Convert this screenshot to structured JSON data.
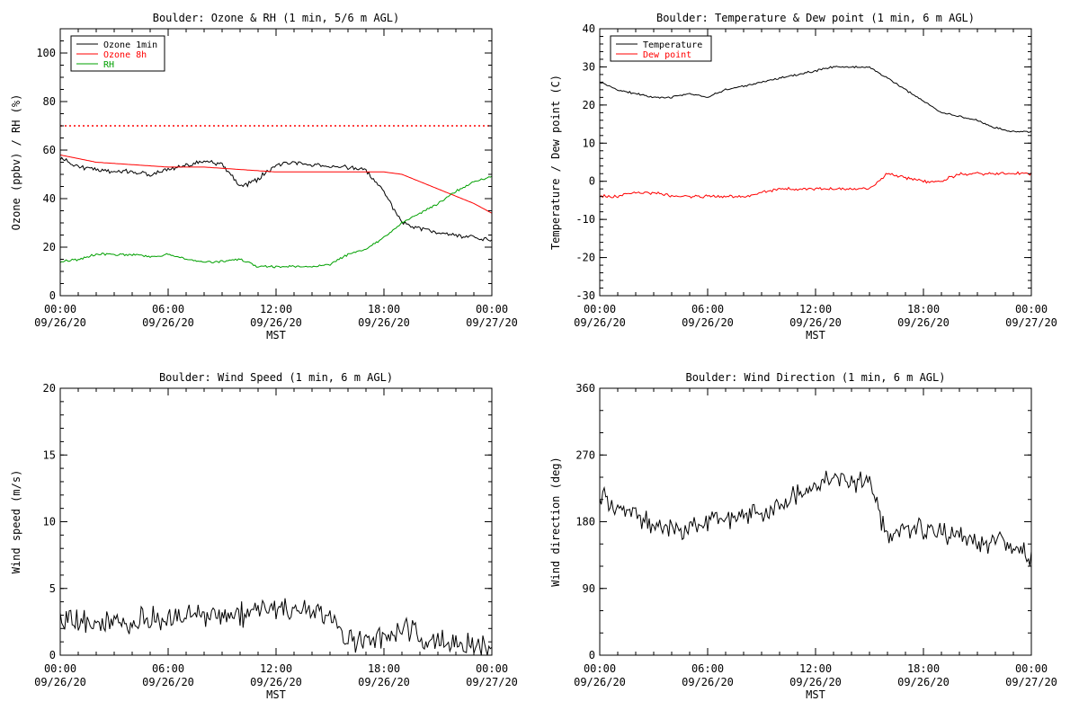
{
  "chart_data": [
    {
      "type": "line",
      "title": "Boulder: Ozone & RH (1 min, 5/6 m AGL)",
      "xlabel": "MST",
      "ylabel": "Ozone (ppbv) / RH (%)",
      "xlim": [
        "09/26/20 00:00",
        "09/27/20 00:00"
      ],
      "ylim": [
        0,
        110
      ],
      "x_ticks": [
        {
          "time": "00:00",
          "date": "09/26/20"
        },
        {
          "time": "06:00",
          "date": "09/26/20"
        },
        {
          "time": "12:00",
          "date": "09/26/20"
        },
        {
          "time": "18:00",
          "date": "09/26/20"
        },
        {
          "time": "00:00",
          "date": "09/27/20"
        }
      ],
      "y_ticks": [
        "0",
        "20",
        "40",
        "60",
        "80",
        "100"
      ],
      "grid": false,
      "legend_position": "top-left",
      "reference_line": {
        "y": 70,
        "color": "#ff0000",
        "style": "dotted"
      },
      "series": [
        {
          "name": "Ozone 1min",
          "color": "#000000",
          "noise": 1.2,
          "x": [
            "09/26/20 00:00",
            "09/26/20 01:00",
            "09/26/20 02:00",
            "09/26/20 03:00",
            "09/26/20 04:00",
            "09/26/20 05:00",
            "09/26/20 06:00",
            "09/26/20 07:00",
            "09/26/20 08:00",
            "09/26/20 09:00",
            "09/26/20 10:00",
            "09/26/20 11:00",
            "09/26/20 12:00",
            "09/26/20 13:00",
            "09/26/20 14:00",
            "09/26/20 15:00",
            "09/26/20 16:00",
            "09/26/20 17:00",
            "09/26/20 18:00",
            "09/26/20 19:00",
            "09/26/20 20:00",
            "09/26/20 21:00",
            "09/26/20 22:00",
            "09/26/20 23:00",
            "09/27/20 00:00"
          ],
          "y": [
            57,
            53,
            52,
            51,
            51,
            50,
            52,
            54,
            55,
            54,
            45,
            48,
            54,
            55,
            54,
            53,
            53,
            52,
            43,
            30,
            28,
            26,
            25,
            24,
            23
          ]
        },
        {
          "name": "Ozone 8h",
          "color": "#ff0000",
          "noise": 0,
          "x": [
            "09/26/20 00:00",
            "09/26/20 02:00",
            "09/26/20 04:00",
            "09/26/20 06:00",
            "09/26/20 08:00",
            "09/26/20 10:00",
            "09/26/20 12:00",
            "09/26/20 14:00",
            "09/26/20 16:00",
            "09/26/20 18:00",
            "09/26/20 19:00",
            "09/26/20 20:00",
            "09/26/20 21:00",
            "09/26/20 22:00",
            "09/26/20 23:00",
            "09/27/20 00:00"
          ],
          "y": [
            58,
            55,
            54,
            53,
            53,
            52,
            51,
            51,
            51,
            51,
            50,
            47,
            44,
            41,
            38,
            34
          ]
        },
        {
          "name": "RH",
          "color": "#00a000",
          "noise": 0.6,
          "x": [
            "09/26/20 00:00",
            "09/26/20 01:00",
            "09/26/20 02:00",
            "09/26/20 03:00",
            "09/26/20 04:00",
            "09/26/20 05:00",
            "09/26/20 06:00",
            "09/26/20 07:00",
            "09/26/20 08:00",
            "09/26/20 09:00",
            "09/26/20 10:00",
            "09/26/20 11:00",
            "09/26/20 12:00",
            "09/26/20 13:00",
            "09/26/20 14:00",
            "09/26/20 15:00",
            "09/26/20 16:00",
            "09/26/20 17:00",
            "09/26/20 18:00",
            "09/26/20 19:00",
            "09/26/20 20:00",
            "09/26/20 21:00",
            "09/26/20 22:00",
            "09/26/20 23:00",
            "09/27/20 00:00"
          ],
          "y": [
            14,
            15,
            17,
            17,
            17,
            16,
            17,
            15,
            14,
            14,
            15,
            12,
            12,
            12,
            12,
            13,
            17,
            19,
            24,
            30,
            34,
            38,
            43,
            47,
            49
          ]
        }
      ]
    },
    {
      "type": "line",
      "title": "Boulder: Temperature & Dew point (1 min, 6 m AGL)",
      "xlabel": "MST",
      "ylabel": "Temperature / Dew point (C)",
      "xlim": [
        "09/26/20 00:00",
        "09/27/20 00:00"
      ],
      "ylim": [
        -30,
        40
      ],
      "x_ticks": [
        {
          "time": "00:00",
          "date": "09/26/20"
        },
        {
          "time": "06:00",
          "date": "09/26/20"
        },
        {
          "time": "12:00",
          "date": "09/26/20"
        },
        {
          "time": "18:00",
          "date": "09/26/20"
        },
        {
          "time": "00:00",
          "date": "09/27/20"
        }
      ],
      "y_ticks": [
        "-30",
        "-20",
        "-10",
        "0",
        "10",
        "20",
        "30",
        "40"
      ],
      "grid": false,
      "legend_position": "top-left",
      "series": [
        {
          "name": "Temperature",
          "color": "#000000",
          "noise": 0.3,
          "x": [
            "09/26/20 00:00",
            "09/26/20 01:00",
            "09/26/20 02:00",
            "09/26/20 03:00",
            "09/26/20 04:00",
            "09/26/20 05:00",
            "09/26/20 06:00",
            "09/26/20 07:00",
            "09/26/20 08:00",
            "09/26/20 09:00",
            "09/26/20 10:00",
            "09/26/20 11:00",
            "09/26/20 12:00",
            "09/26/20 13:00",
            "09/26/20 14:00",
            "09/26/20 15:00",
            "09/26/20 16:00",
            "09/26/20 17:00",
            "09/26/20 18:00",
            "09/26/20 19:00",
            "09/26/20 20:00",
            "09/26/20 21:00",
            "09/26/20 22:00",
            "09/26/20 23:00",
            "09/27/20 00:00"
          ],
          "y": [
            26,
            24,
            23,
            22,
            22,
            23,
            22,
            24,
            25,
            26,
            27,
            28,
            29,
            30,
            30,
            30,
            27,
            24,
            21,
            18,
            17,
            16,
            14,
            13,
            13
          ]
        },
        {
          "name": "Dew point",
          "color": "#ff0000",
          "noise": 0.5,
          "x": [
            "09/26/20 00:00",
            "09/26/20 01:00",
            "09/26/20 02:00",
            "09/26/20 03:00",
            "09/26/20 04:00",
            "09/26/20 05:00",
            "09/26/20 06:00",
            "09/26/20 07:00",
            "09/26/20 08:00",
            "09/26/20 09:00",
            "09/26/20 10:00",
            "09/26/20 11:00",
            "09/26/20 12:00",
            "09/26/20 13:00",
            "09/26/20 14:00",
            "09/26/20 15:00",
            "09/26/20 16:00",
            "09/26/20 17:00",
            "09/26/20 18:00",
            "09/26/20 19:00",
            "09/26/20 20:00",
            "09/26/20 21:00",
            "09/26/20 22:00",
            "09/26/20 23:00",
            "09/27/20 00:00"
          ],
          "y": [
            -4,
            -4,
            -3,
            -3,
            -4,
            -4,
            -4,
            -4,
            -4,
            -3,
            -2,
            -2,
            -2,
            -2,
            -2,
            -2,
            2,
            1,
            0,
            0,
            2,
            2,
            2,
            2,
            2
          ]
        }
      ]
    },
    {
      "type": "line",
      "title": "Boulder: Wind Speed (1 min, 6 m AGL)",
      "xlabel": "MST",
      "ylabel": "Wind speed (m/s)",
      "xlim": [
        "09/26/20 00:00",
        "09/27/20 00:00"
      ],
      "ylim": [
        0,
        20
      ],
      "x_ticks": [
        {
          "time": "00:00",
          "date": "09/26/20"
        },
        {
          "time": "06:00",
          "date": "09/26/20"
        },
        {
          "time": "12:00",
          "date": "09/26/20"
        },
        {
          "time": "18:00",
          "date": "09/26/20"
        },
        {
          "time": "00:00",
          "date": "09/27/20"
        }
      ],
      "y_ticks": [
        "0",
        "5",
        "10",
        "15",
        "20"
      ],
      "grid": false,
      "series": [
        {
          "name": "",
          "color": "#000000",
          "noise": 1.1,
          "floor": 0,
          "x": [
            "09/26/20 00:00",
            "09/26/20 01:00",
            "09/26/20 02:00",
            "09/26/20 03:00",
            "09/26/20 04:00",
            "09/26/20 05:00",
            "09/26/20 06:00",
            "09/26/20 07:00",
            "09/26/20 08:00",
            "09/26/20 09:00",
            "09/26/20 10:00",
            "09/26/20 11:00",
            "09/26/20 12:00",
            "09/26/20 13:00",
            "09/26/20 14:00",
            "09/26/20 15:00",
            "09/26/20 16:00",
            "09/26/20 17:00",
            "09/26/20 18:00",
            "09/26/20 19:00",
            "09/26/20 20:00",
            "09/26/20 21:00",
            "09/26/20 22:00",
            "09/26/20 23:00",
            "09/27/20 00:00"
          ],
          "y": [
            3,
            2.5,
            2.5,
            2.5,
            2.5,
            3,
            2.5,
            3,
            3,
            3,
            3,
            3.5,
            3.5,
            3.5,
            3.5,
            3,
            1,
            1,
            1.5,
            2,
            1.5,
            1,
            1,
            0.8,
            0.5
          ]
        }
      ]
    },
    {
      "type": "line",
      "title": "Boulder: Wind Direction (1 min, 6 m AGL)",
      "xlabel": "MST",
      "ylabel": "Wind direction (deg)",
      "xlim": [
        "09/26/20 00:00",
        "09/27/20 00:00"
      ],
      "ylim": [
        0,
        360
      ],
      "x_ticks": [
        {
          "time": "00:00",
          "date": "09/26/20"
        },
        {
          "time": "06:00",
          "date": "09/26/20"
        },
        {
          "time": "12:00",
          "date": "09/26/20"
        },
        {
          "time": "18:00",
          "date": "09/26/20"
        },
        {
          "time": "00:00",
          "date": "09/27/20"
        }
      ],
      "y_ticks": [
        "0",
        "90",
        "180",
        "270",
        "360"
      ],
      "grid": false,
      "series": [
        {
          "name": "",
          "color": "#000000",
          "noise": 18,
          "floor": 0,
          "ceil": 360,
          "x": [
            "09/26/20 00:00",
            "09/26/20 01:00",
            "09/26/20 02:00",
            "09/26/20 03:00",
            "09/26/20 04:00",
            "09/26/20 05:00",
            "09/26/20 06:00",
            "09/26/20 07:00",
            "09/26/20 08:00",
            "09/26/20 09:00",
            "09/26/20 10:00",
            "09/26/20 11:00",
            "09/26/20 12:00",
            "09/26/20 13:00",
            "09/26/20 14:00",
            "09/26/20 15:00",
            "09/26/20 16:00",
            "09/26/20 17:00",
            "09/26/20 18:00",
            "09/26/20 19:00",
            "09/26/20 20:00",
            "09/26/20 21:00",
            "09/26/20 22:00",
            "09/26/20 23:00",
            "09/27/20 00:00"
          ],
          "y": [
            215,
            200,
            190,
            175,
            170,
            175,
            180,
            185,
            190,
            190,
            200,
            220,
            230,
            240,
            235,
            230,
            160,
            175,
            170,
            165,
            160,
            150,
            150,
            145,
            130
          ]
        }
      ]
    }
  ]
}
